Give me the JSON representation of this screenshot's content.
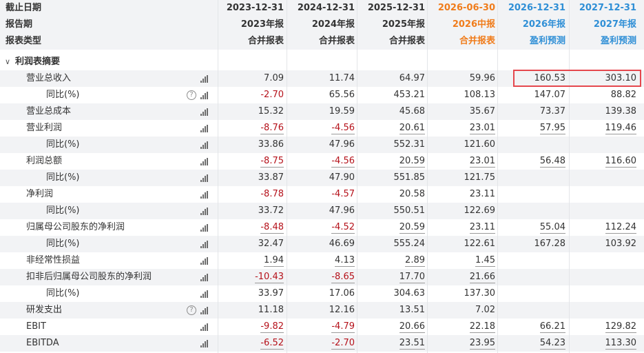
{
  "header_rows": [
    {
      "label": "截止日期",
      "cells": [
        "2023-12-31",
        "2024-12-31",
        "2025-12-31",
        "2026-06-30",
        "2026-12-31",
        "2027-12-31"
      ]
    },
    {
      "label": "报告期",
      "cells": [
        "2023年报",
        "2024年报",
        "2025年报",
        "2026中报",
        "2026年报",
        "2027年报"
      ]
    },
    {
      "label": "报表类型",
      "cells": [
        "合并报表",
        "合并报表",
        "合并报表",
        "合并报表",
        "盈利预测",
        "盈利预测"
      ]
    }
  ],
  "header_colors": [
    "#333333",
    "#333333",
    "#333333",
    "#f07c1b",
    "#2f8fd6",
    "#2f8fd6"
  ],
  "section": {
    "label": "利润表摘要",
    "caret": "∨"
  },
  "help_glyph": "?",
  "rows": [
    {
      "label": "营业总收入",
      "level": 1,
      "help": false,
      "values": [
        "7.09",
        "11.74",
        "64.97",
        "59.96",
        "160.53",
        "303.10"
      ]
    },
    {
      "label": "同比(%)",
      "level": 2,
      "help": true,
      "values": [
        "-2.70",
        "65.56",
        "453.21",
        "108.13",
        "147.07",
        "88.82"
      ]
    },
    {
      "label": "营业总成本",
      "level": 1,
      "help": false,
      "values": [
        "15.32",
        "19.59",
        "45.68",
        "35.67",
        "73.37",
        "139.38"
      ]
    },
    {
      "label": "营业利润",
      "level": 1,
      "help": false,
      "values": [
        "-8.76",
        "-4.56",
        "20.61",
        "23.01",
        "57.95",
        "119.46"
      ]
    },
    {
      "label": "同比(%)",
      "level": 2,
      "help": false,
      "values": [
        "33.86",
        "47.96",
        "552.31",
        "121.60",
        "",
        ""
      ]
    },
    {
      "label": "利润总额",
      "level": 1,
      "help": false,
      "values": [
        "-8.75",
        "-4.56",
        "20.59",
        "23.01",
        "56.48",
        "116.60"
      ]
    },
    {
      "label": "同比(%)",
      "level": 2,
      "help": false,
      "values": [
        "33.87",
        "47.90",
        "551.85",
        "121.75",
        "",
        ""
      ]
    },
    {
      "label": "净利润",
      "level": 1,
      "help": false,
      "values": [
        "-8.78",
        "-4.57",
        "20.58",
        "23.11",
        "",
        ""
      ]
    },
    {
      "label": "同比(%)",
      "level": 2,
      "help": false,
      "values": [
        "33.72",
        "47.96",
        "550.51",
        "122.69",
        "",
        ""
      ]
    },
    {
      "label": "归属母公司股东的净利润",
      "level": 1,
      "help": false,
      "values": [
        "-8.48",
        "-4.52",
        "20.59",
        "23.11",
        "55.04",
        "112.24"
      ]
    },
    {
      "label": "同比(%)",
      "level": 2,
      "help": false,
      "values": [
        "32.47",
        "46.69",
        "555.24",
        "122.61",
        "167.28",
        "103.92"
      ]
    },
    {
      "label": "非经常性损益",
      "level": 1,
      "help": false,
      "values": [
        "1.94",
        "4.13",
        "2.89",
        "1.45",
        "",
        ""
      ]
    },
    {
      "label": "扣非后归属母公司股东的净利润",
      "level": 1,
      "help": false,
      "values": [
        "-10.43",
        "-8.65",
        "17.70",
        "21.66",
        "",
        ""
      ]
    },
    {
      "label": "同比(%)",
      "level": 2,
      "help": false,
      "values": [
        "33.97",
        "17.06",
        "304.63",
        "137.30",
        "",
        ""
      ]
    },
    {
      "label": "研发支出",
      "level": 1,
      "help": true,
      "values": [
        "11.18",
        "12.16",
        "13.51",
        "7.02",
        "",
        ""
      ]
    },
    {
      "label": "EBIT",
      "level": 1,
      "help": false,
      "values": [
        "-9.82",
        "-4.79",
        "20.66",
        "22.18",
        "66.21",
        "129.82"
      ]
    },
    {
      "label": "EBITDA",
      "level": 1,
      "help": false,
      "values": [
        "-6.52",
        "-2.70",
        "23.51",
        "23.95",
        "54.23",
        "113.30"
      ]
    }
  ],
  "underlined_rows": [
    3,
    5,
    9,
    11,
    12,
    15,
    16
  ],
  "colors": {
    "negative": "#b5111a",
    "highlight_border": "#e5474d",
    "stripe": "#f2f3f5"
  }
}
